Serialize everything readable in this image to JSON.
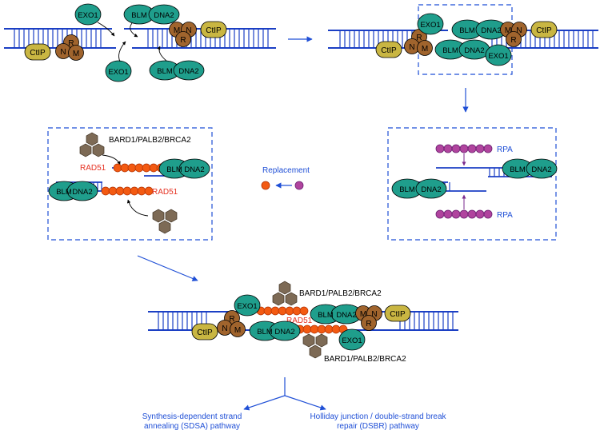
{
  "labels": {
    "exo1": "EXO1",
    "blm": "BLM",
    "dna2": "DNA2",
    "ctip": "CtIP",
    "mrn_r": "R",
    "mrn_n": "N",
    "mrn_m": "M",
    "rpa": "RPA",
    "rad51": "RAD51",
    "bard1_complex": "BARD1/PALB2/BRCA2",
    "replacement": "Replacement"
  },
  "pathways": {
    "left": "Synthesis-dependent strand annealing (SDSA) pathway",
    "right": "Holliday junction / double-strand break repair (DSBR) pathway"
  },
  "colors": {
    "dna": "#1b3fc4",
    "exo1": "#1f9e8c",
    "ctip": "#c9b642",
    "mrn": "#a0642d",
    "rad51": "#f35a12",
    "rpa": "#b0449e",
    "brca": "#7d6a55",
    "arrow": "#1f4fd6"
  }
}
